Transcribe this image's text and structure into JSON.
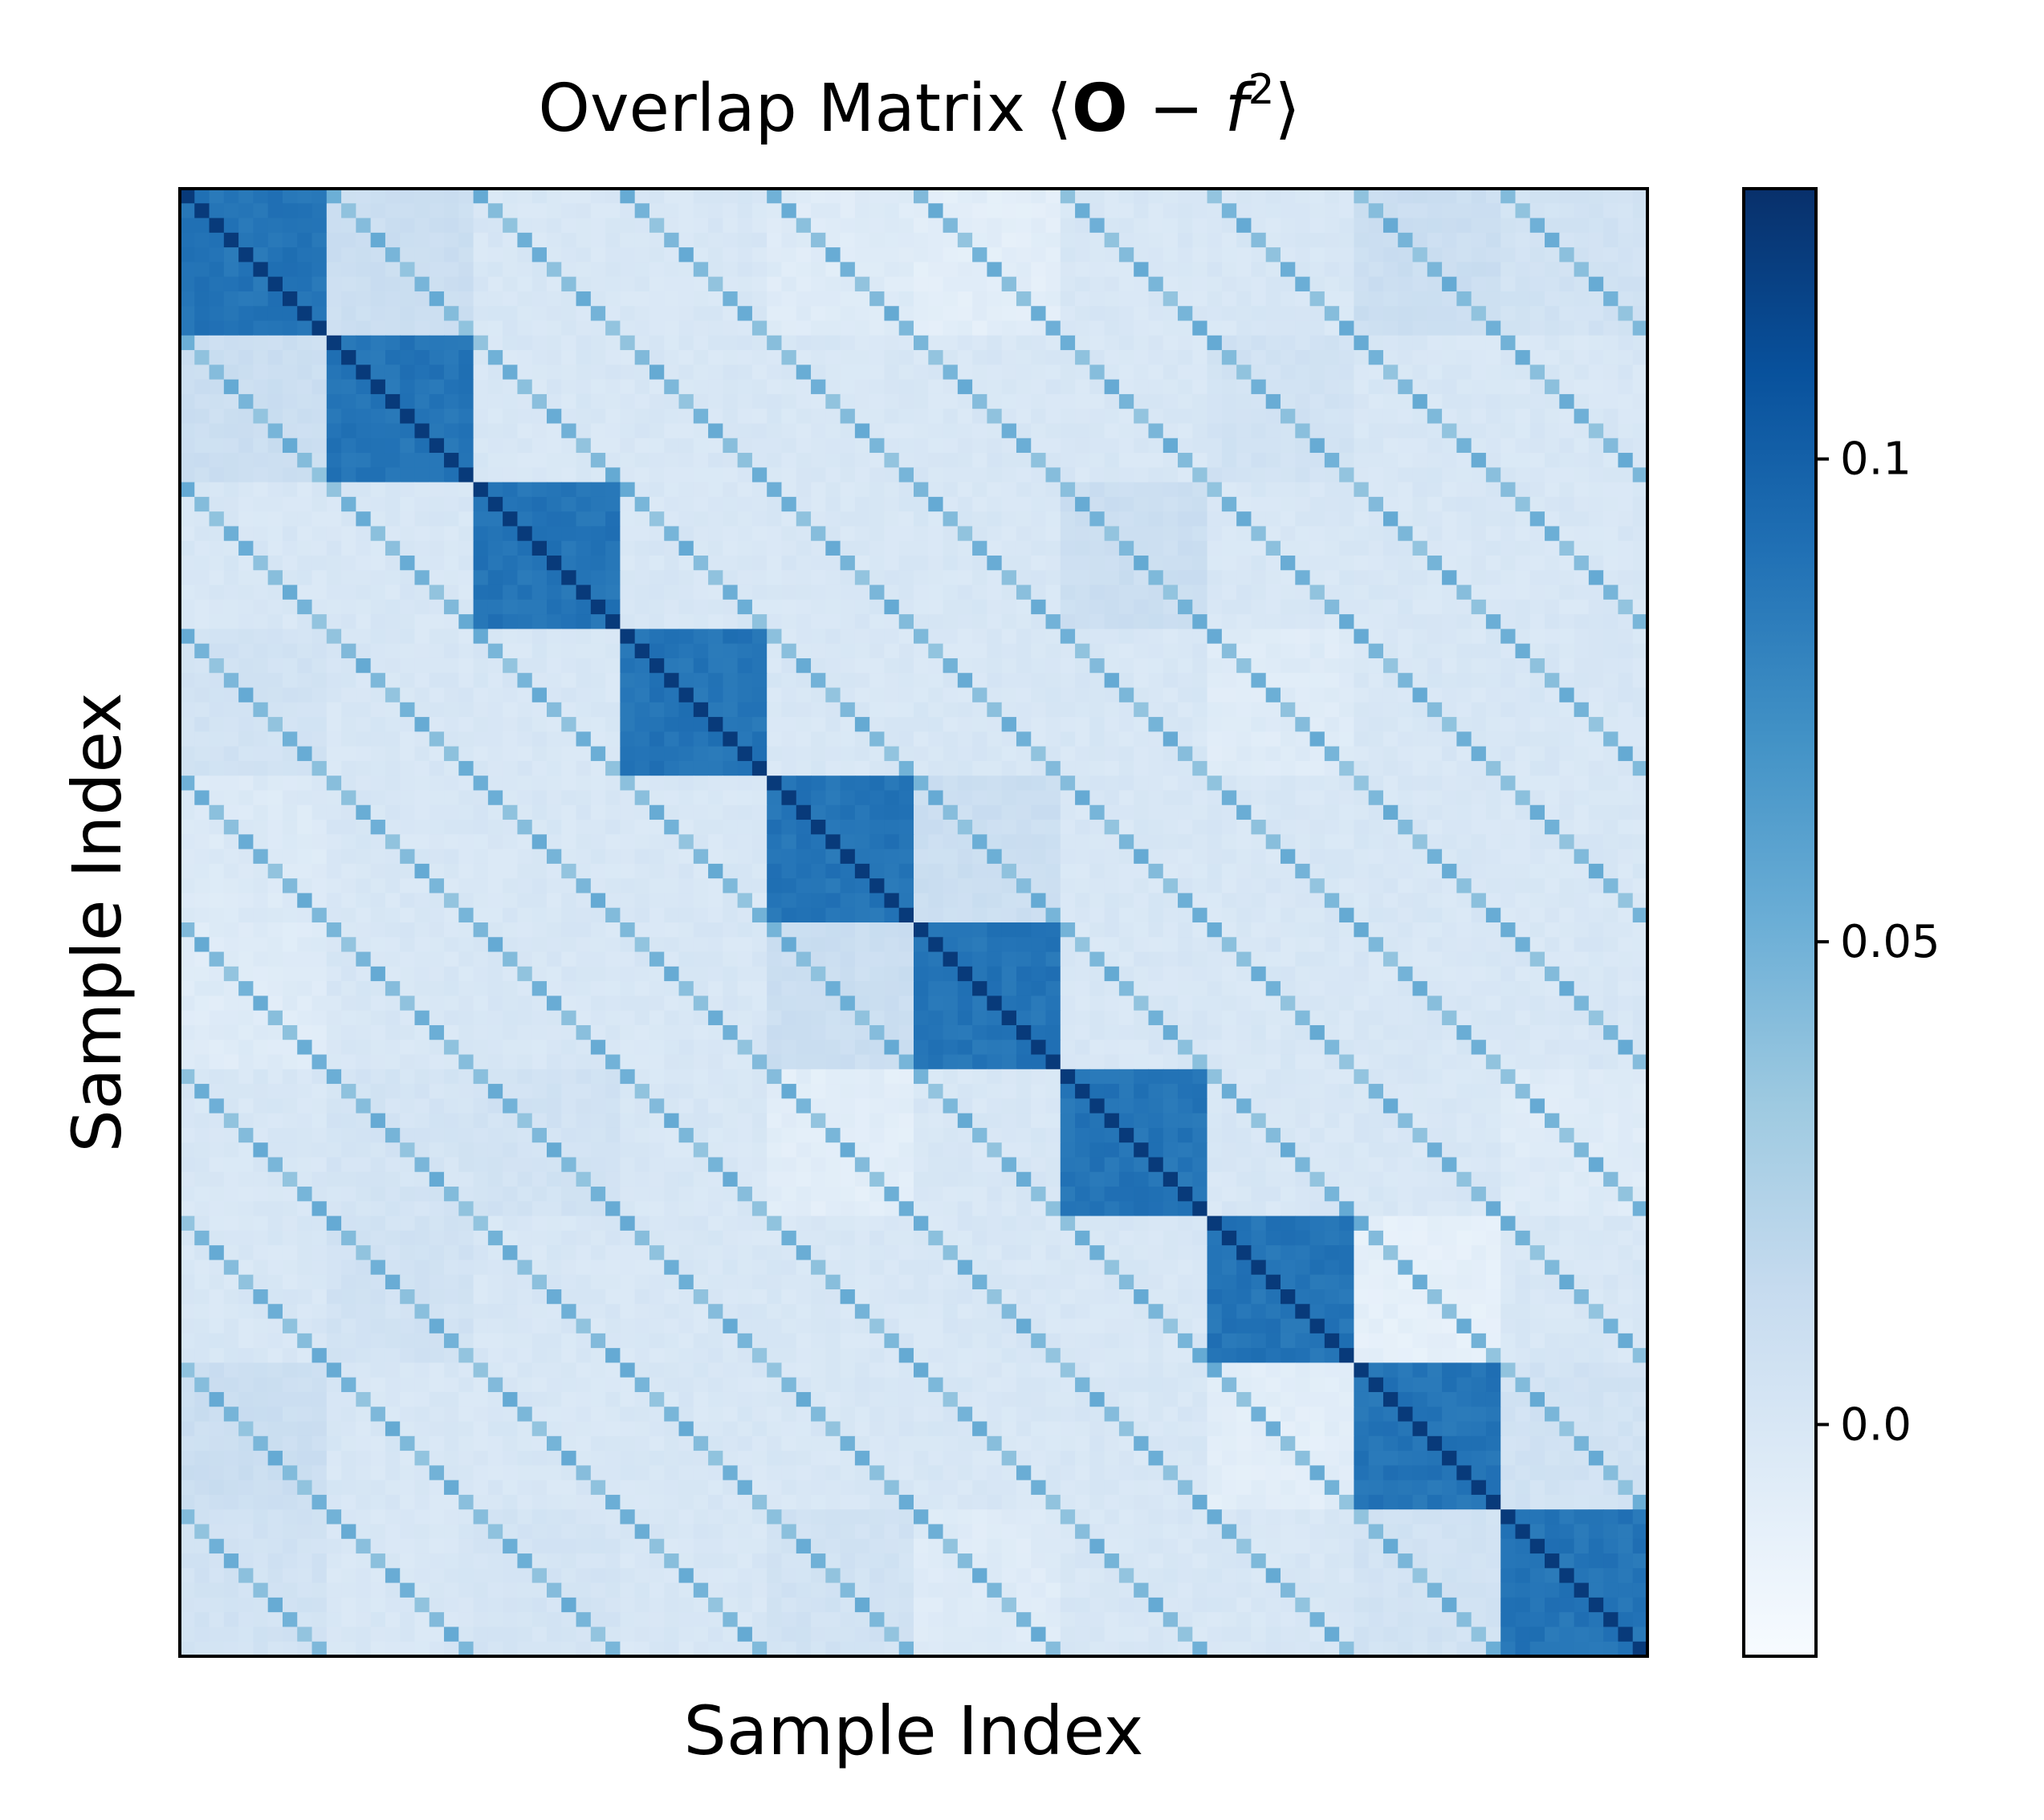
{
  "chart_data": {
    "type": "heatmap",
    "title_prefix": "Overlap Matrix ⟨",
    "title_bold": "O",
    "title_minus": " − ",
    "title_italic": "f",
    "title_sup": "2",
    "title_suffix": "⟩",
    "xlabel": "Sample Index",
    "ylabel": "Sample Index",
    "grid": false,
    "colormap": "Blues",
    "vmin": -0.024,
    "vmax": 0.128,
    "colorbar_ticks": [
      {
        "value": 0.0,
        "label": "0.0"
      },
      {
        "value": 0.05,
        "label": "0.05"
      },
      {
        "value": 0.1,
        "label": "0.1"
      }
    ],
    "matrix": {
      "size": 100,
      "block_count": 10,
      "block_size": 10,
      "main_diagonal_value": 0.122,
      "diagonal_block_value": 0.088,
      "same_offset_stripe_value": 0.055,
      "background_value": 0.0,
      "off_diagonal_block_values": [
        [
          0.088,
          0.01,
          0.0,
          0.0,
          -0.005,
          -0.008,
          0.0,
          0.0,
          0.01,
          0.005
        ],
        [
          0.01,
          0.088,
          0.0,
          0.0,
          0.0,
          0.0,
          0.0,
          0.005,
          0.0,
          0.0
        ],
        [
          0.0,
          0.0,
          0.088,
          0.0,
          0.0,
          0.0,
          0.01,
          0.0,
          0.0,
          0.0
        ],
        [
          0.005,
          0.0,
          0.0,
          0.088,
          0.0,
          0.0,
          0.0,
          -0.005,
          0.0,
          0.0
        ],
        [
          -0.003,
          0.0,
          0.0,
          0.0,
          0.088,
          0.01,
          0.0,
          0.0,
          0.0,
          0.0
        ],
        [
          -0.005,
          0.0,
          0.0,
          0.0,
          0.01,
          0.088,
          0.0,
          0.0,
          0.0,
          0.0
        ],
        [
          0.0,
          0.003,
          0.005,
          0.0,
          -0.008,
          0.0,
          0.088,
          0.0,
          0.0,
          -0.005
        ],
        [
          0.0,
          0.005,
          0.0,
          0.0,
          0.0,
          0.0,
          0.0,
          0.088,
          -0.01,
          0.0
        ],
        [
          0.01,
          0.0,
          0.0,
          0.0,
          0.0,
          0.0,
          0.0,
          -0.008,
          0.088,
          0.005
        ],
        [
          0.005,
          0.0,
          0.003,
          0.0,
          0.005,
          -0.005,
          0.0,
          0.0,
          0.005,
          0.088
        ]
      ]
    }
  }
}
